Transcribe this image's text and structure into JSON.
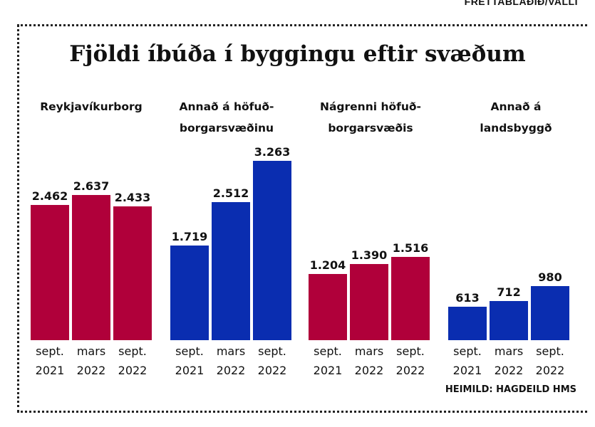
{
  "credit": "FRÉTTABLAÐIÐ/VALLI",
  "source": "HEIMILD: HAGDEILD HMS",
  "colors": {
    "red": "#b0003a",
    "blue": "#0a2db0"
  },
  "chart_data": {
    "type": "bar",
    "title": "Fjöldi íbúða í byggingu eftir svæðum",
    "categories": [
      {
        "line1": "sept.",
        "line2": "2021"
      },
      {
        "line1": "mars",
        "line2": "2022"
      },
      {
        "line1": "sept.",
        "line2": "2022"
      }
    ],
    "groups": [
      {
        "title_line1": "Reykjavíkurborg",
        "title_line2": "",
        "color": "red",
        "values": [
          2462,
          2637,
          2433
        ],
        "labels": [
          "2.462",
          "2.637",
          "2.433"
        ]
      },
      {
        "title_line1": "Annað á höfuð-",
        "title_line2": "borgarsvæðinu",
        "color": "blue",
        "values": [
          1719,
          2512,
          3263
        ],
        "labels": [
          "1.719",
          "2.512",
          "3.263"
        ]
      },
      {
        "title_line1": "Nágrenni höfuð-",
        "title_line2": "borgarsvæðis",
        "color": "red",
        "values": [
          1204,
          1390,
          1516
        ],
        "labels": [
          "1.204",
          "1.390",
          "1.516"
        ]
      },
      {
        "title_line1": "Annað á",
        "title_line2": "landsbyggð",
        "color": "blue",
        "values": [
          613,
          712,
          980
        ],
        "labels": [
          "613",
          "712",
          "980"
        ]
      }
    ],
    "ylim": [
      0,
      3263
    ]
  }
}
